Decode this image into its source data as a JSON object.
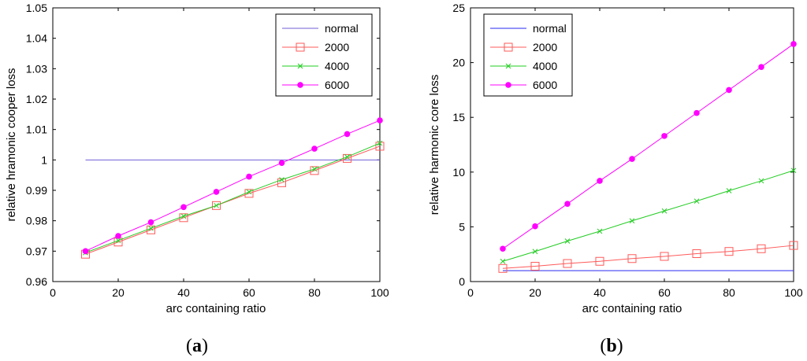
{
  "chart_data": [
    {
      "type": "line",
      "panel_label": {
        "open": "(",
        "letter": "a",
        "close": ")"
      },
      "xlabel": "arc containing ratio",
      "ylabel": "relative hramonic cooper loss",
      "xlim": [
        0,
        100
      ],
      "ylim": [
        0.96,
        1.05
      ],
      "xticks": [
        0,
        20,
        40,
        60,
        80,
        100
      ],
      "xtick_labels": [
        "0",
        "20",
        "40",
        "60",
        "80",
        "100"
      ],
      "yticks": [
        0.96,
        0.97,
        0.98,
        0.99,
        1.0,
        1.01,
        1.02,
        1.03,
        1.04,
        1.05
      ],
      "ytick_labels": [
        "0.96",
        "0.97",
        "0.98",
        "0.99",
        "1",
        "1.01",
        "1.02",
        "1.03",
        "1.04",
        "1.05"
      ],
      "legend_position": "top-right",
      "x": [
        10,
        20,
        30,
        40,
        50,
        60,
        70,
        80,
        90,
        100
      ],
      "series": [
        {
          "name": "normal",
          "color": "#6f5fd6",
          "marker": "none",
          "x": [
            10,
            100
          ],
          "values": [
            1.0,
            1.0
          ]
        },
        {
          "name": "2000",
          "color": "#ff5a5a",
          "marker": "square",
          "values": [
            0.969,
            0.973,
            0.977,
            0.981,
            0.985,
            0.989,
            0.9925,
            0.9965,
            1.0005,
            1.0045
          ]
        },
        {
          "name": "4000",
          "color": "#22cc22",
          "marker": "x",
          "values": [
            0.9695,
            0.9735,
            0.9775,
            0.9815,
            0.985,
            0.9895,
            0.9935,
            0.997,
            1.001,
            1.0055
          ]
        },
        {
          "name": "6000",
          "color": "#ff00ff",
          "marker": "dot",
          "values": [
            0.97,
            0.975,
            0.9795,
            0.9845,
            0.9895,
            0.9945,
            0.999,
            1.0037,
            1.0085,
            1.013
          ]
        }
      ]
    },
    {
      "type": "line",
      "panel_label": {
        "open": "(",
        "letter": "b",
        "close": ")"
      },
      "xlabel": "arc containing ratio",
      "ylabel": "relative harmonic core loss",
      "xlim": [
        0,
        100
      ],
      "ylim": [
        0,
        25
      ],
      "xticks": [
        0,
        20,
        40,
        60,
        80,
        100
      ],
      "xtick_labels": [
        "0",
        "20",
        "40",
        "60",
        "80",
        "100"
      ],
      "yticks": [
        0,
        5,
        10,
        15,
        20,
        25
      ],
      "ytick_labels": [
        "0",
        "5",
        "10",
        "15",
        "20",
        "25"
      ],
      "legend_position": "top-left",
      "x": [
        10,
        20,
        30,
        40,
        50,
        60,
        70,
        80,
        90,
        100
      ],
      "series": [
        {
          "name": "normal",
          "color": "#2a2af0",
          "marker": "none",
          "x": [
            10,
            100
          ],
          "values": [
            1.0,
            1.0
          ]
        },
        {
          "name": "2000",
          "color": "#ff5a5a",
          "marker": "square",
          "values": [
            1.2,
            1.4,
            1.65,
            1.85,
            2.1,
            2.3,
            2.55,
            2.75,
            3.0,
            3.3
          ]
        },
        {
          "name": "4000",
          "color": "#22cc22",
          "marker": "x",
          "values": [
            1.85,
            2.75,
            3.7,
            4.6,
            5.55,
            6.45,
            7.35,
            8.3,
            9.2,
            10.15
          ]
        },
        {
          "name": "6000",
          "color": "#ff00ff",
          "marker": "dot",
          "values": [
            3.0,
            5.05,
            7.1,
            9.2,
            11.2,
            13.3,
            15.4,
            17.5,
            19.6,
            21.7
          ]
        }
      ]
    }
  ]
}
